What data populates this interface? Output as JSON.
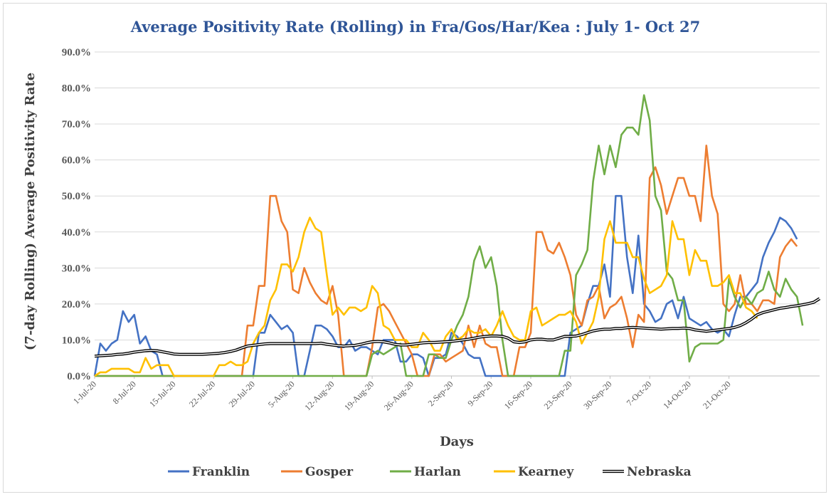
{
  "chart_data": {
    "type": "line",
    "title": "Average Positivity Rate (Rolling) in Fra/Gos/Har/Kea : July 1- Oct 27",
    "xlabel": "Days",
    "ylabel": "(7-day Rolling) Average Positivity Rate",
    "ylim": [
      0,
      90
    ],
    "yticks": [
      "0.0%",
      "10.0%",
      "20.0%",
      "30.0%",
      "40.0%",
      "50.0%",
      "60.0%",
      "70.0%",
      "80.0%",
      "90.0%"
    ],
    "x_start": "1-Jul-20",
    "x_end": "27-Oct-20",
    "xticks": [
      "1-Jul-20",
      "8-Jul-20",
      "15-Jul-20",
      "22-Jul-20",
      "29-Jul-20",
      "5-Aug-20",
      "12-Aug-20",
      "19-Aug-20",
      "26-Aug-20",
      "2-Sep-20",
      "9-Sep-20",
      "16-Sep-20",
      "23-Sep-20",
      "30-Sep-20",
      "7-Oct-20",
      "14-Oct-20",
      "21-Oct-20"
    ],
    "grid": "horizontal",
    "legend_position": "bottom",
    "series": [
      {
        "name": "Franklin",
        "color": "#4472c4",
        "values": [
          0,
          9,
          7,
          9,
          10,
          18,
          15,
          17,
          9,
          11,
          7,
          6,
          0,
          0,
          0,
          0,
          0,
          0,
          0,
          0,
          0,
          0,
          0,
          0,
          0,
          0,
          0,
          0,
          0,
          12,
          12,
          17,
          15,
          13,
          14,
          12,
          0,
          0,
          7,
          14,
          14,
          13,
          11,
          8,
          8,
          10,
          7,
          8,
          8,
          7,
          6,
          10,
          10,
          10,
          4,
          4,
          6,
          6,
          5,
          0,
          5,
          5,
          6,
          12,
          11,
          9,
          6,
          5,
          5,
          0,
          0,
          0,
          0,
          0,
          0,
          0,
          0,
          0,
          0,
          0,
          0,
          0,
          0,
          0,
          12,
          13,
          14,
          20,
          25,
          25,
          31,
          22,
          50,
          50,
          33,
          23,
          39,
          20,
          18,
          15,
          16,
          20,
          21,
          16,
          22,
          16,
          15,
          14,
          15,
          13,
          12,
          13,
          11,
          17,
          22,
          22,
          24,
          26,
          33,
          37,
          40,
          44,
          43,
          41,
          38
        ]
      },
      {
        "name": "Gosper",
        "color": "#ed7d31",
        "values": [
          0,
          0,
          0,
          0,
          0,
          0,
          0,
          0,
          0,
          0,
          0,
          0,
          0,
          0,
          0,
          0,
          0,
          0,
          0,
          0,
          0,
          0,
          0,
          0,
          0,
          0,
          0,
          14,
          14,
          25,
          25,
          50,
          50,
          43,
          40,
          24,
          23,
          30,
          26,
          23,
          21,
          20,
          25,
          17,
          0,
          0,
          0,
          0,
          0,
          8,
          19,
          20,
          18,
          15,
          12,
          9,
          6,
          0,
          0,
          0,
          6,
          6,
          4,
          5,
          6,
          7,
          14,
          8,
          14,
          9,
          8,
          8,
          0,
          0,
          0,
          8,
          8,
          12,
          40,
          40,
          35,
          34,
          37,
          33,
          28,
          17,
          14,
          21,
          22,
          25,
          16,
          19,
          20,
          22,
          16,
          8,
          17,
          15,
          55,
          58,
          53,
          45,
          50,
          55,
          55,
          50,
          50,
          43,
          64,
          50,
          45,
          20,
          18,
          20,
          28,
          20,
          20,
          18,
          21,
          21,
          20,
          33,
          36,
          38,
          36
        ]
      },
      {
        "name": "Harlan",
        "color": "#70ad47",
        "values": [
          0,
          0,
          0,
          0,
          0,
          0,
          0,
          0,
          0,
          0,
          0,
          0,
          0,
          0,
          0,
          0,
          0,
          0,
          0,
          0,
          0,
          0,
          0,
          0,
          0,
          0,
          0,
          0,
          0,
          0,
          0,
          0,
          0,
          0,
          0,
          0,
          0,
          0,
          0,
          0,
          0,
          0,
          0,
          0,
          0,
          0,
          0,
          0,
          0,
          6,
          7,
          6,
          7,
          8,
          9,
          0,
          0,
          0,
          0,
          6,
          6,
          5,
          5,
          10,
          14,
          17,
          22,
          32,
          36,
          30,
          33,
          25,
          10,
          0,
          0,
          0,
          0,
          0,
          0,
          0,
          0,
          0,
          0,
          7,
          7,
          28,
          31,
          35,
          54,
          64,
          56,
          64,
          58,
          67,
          69,
          69,
          67,
          78,
          71,
          50,
          46,
          29,
          27,
          21,
          21,
          4,
          8,
          9,
          9,
          9,
          9,
          10,
          27,
          22,
          19,
          22,
          20,
          23,
          24,
          29,
          24,
          22,
          27,
          24,
          22,
          14
        ]
      },
      {
        "name": "Kearney",
        "color": "#ffc000",
        "values": [
          0,
          1,
          1,
          2,
          2,
          2,
          2,
          1,
          1,
          5,
          2,
          3,
          3,
          3,
          0,
          0,
          0,
          0,
          0,
          0,
          0,
          0,
          3,
          3,
          4,
          3,
          3,
          4,
          9,
          12,
          14,
          21,
          24,
          31,
          31,
          29,
          33,
          40,
          44,
          41,
          40,
          28,
          17,
          19,
          17,
          19,
          19,
          18,
          19,
          25,
          23,
          14,
          13,
          10,
          10,
          10,
          8,
          8,
          12,
          10,
          7,
          7,
          11,
          13,
          10,
          11,
          13,
          12,
          12,
          13,
          11,
          14,
          18,
          14,
          11,
          10,
          10,
          18,
          19,
          14,
          15,
          16,
          17,
          17,
          18,
          15,
          9,
          12,
          15,
          22,
          38,
          43,
          37,
          37,
          37,
          33,
          33,
          27,
          23,
          24,
          25,
          28,
          43,
          38,
          38,
          28,
          35,
          32,
          32,
          25,
          25,
          26,
          28,
          23,
          23,
          19,
          18,
          16
        ]
      },
      {
        "name": "Nebraska",
        "color": "#000000",
        "values": [
          5.5,
          5.6,
          5.7,
          5.8,
          6,
          6.1,
          6.3,
          6.6,
          6.8,
          7,
          7.1,
          7,
          6.7,
          6.4,
          6.1,
          6,
          6,
          6,
          6,
          6,
          6.1,
          6.2,
          6.3,
          6.5,
          6.8,
          7.2,
          7.8,
          8.3,
          8.5,
          8.7,
          8.9,
          9,
          9,
          9,
          9,
          9,
          9,
          9,
          9,
          9,
          9.1,
          8.8,
          8.6,
          8.4,
          8.3,
          8.4,
          8.5,
          8.8,
          9.2,
          9.5,
          9.6,
          9.5,
          9.2,
          8.8,
          8.6,
          8.6,
          8.8,
          9,
          9.2,
          9.3,
          9.3,
          9.4,
          9.5,
          9.6,
          9.8,
          10,
          10.2,
          10.5,
          10.8,
          11,
          11.1,
          11.1,
          11,
          10.5,
          9.5,
          9.3,
          9.5,
          10,
          10.2,
          10.2,
          10,
          10,
          10.5,
          11,
          11,
          11.1,
          11.5,
          12,
          12.5,
          12.8,
          13,
          13,
          13.2,
          13.2,
          13.4,
          13.5,
          13.4,
          13.3,
          13.2,
          13.1,
          13,
          13.1,
          13.2,
          13.2,
          13.3,
          13.2,
          12.8,
          12.6,
          12.4,
          12.6,
          12.8,
          13,
          13.2,
          13.5,
          14,
          14.8,
          15.8,
          17,
          17.6,
          18,
          18.4,
          18.8,
          19,
          19.3,
          19.5,
          19.8,
          20.1,
          20.5,
          21.5
        ]
      }
    ]
  }
}
